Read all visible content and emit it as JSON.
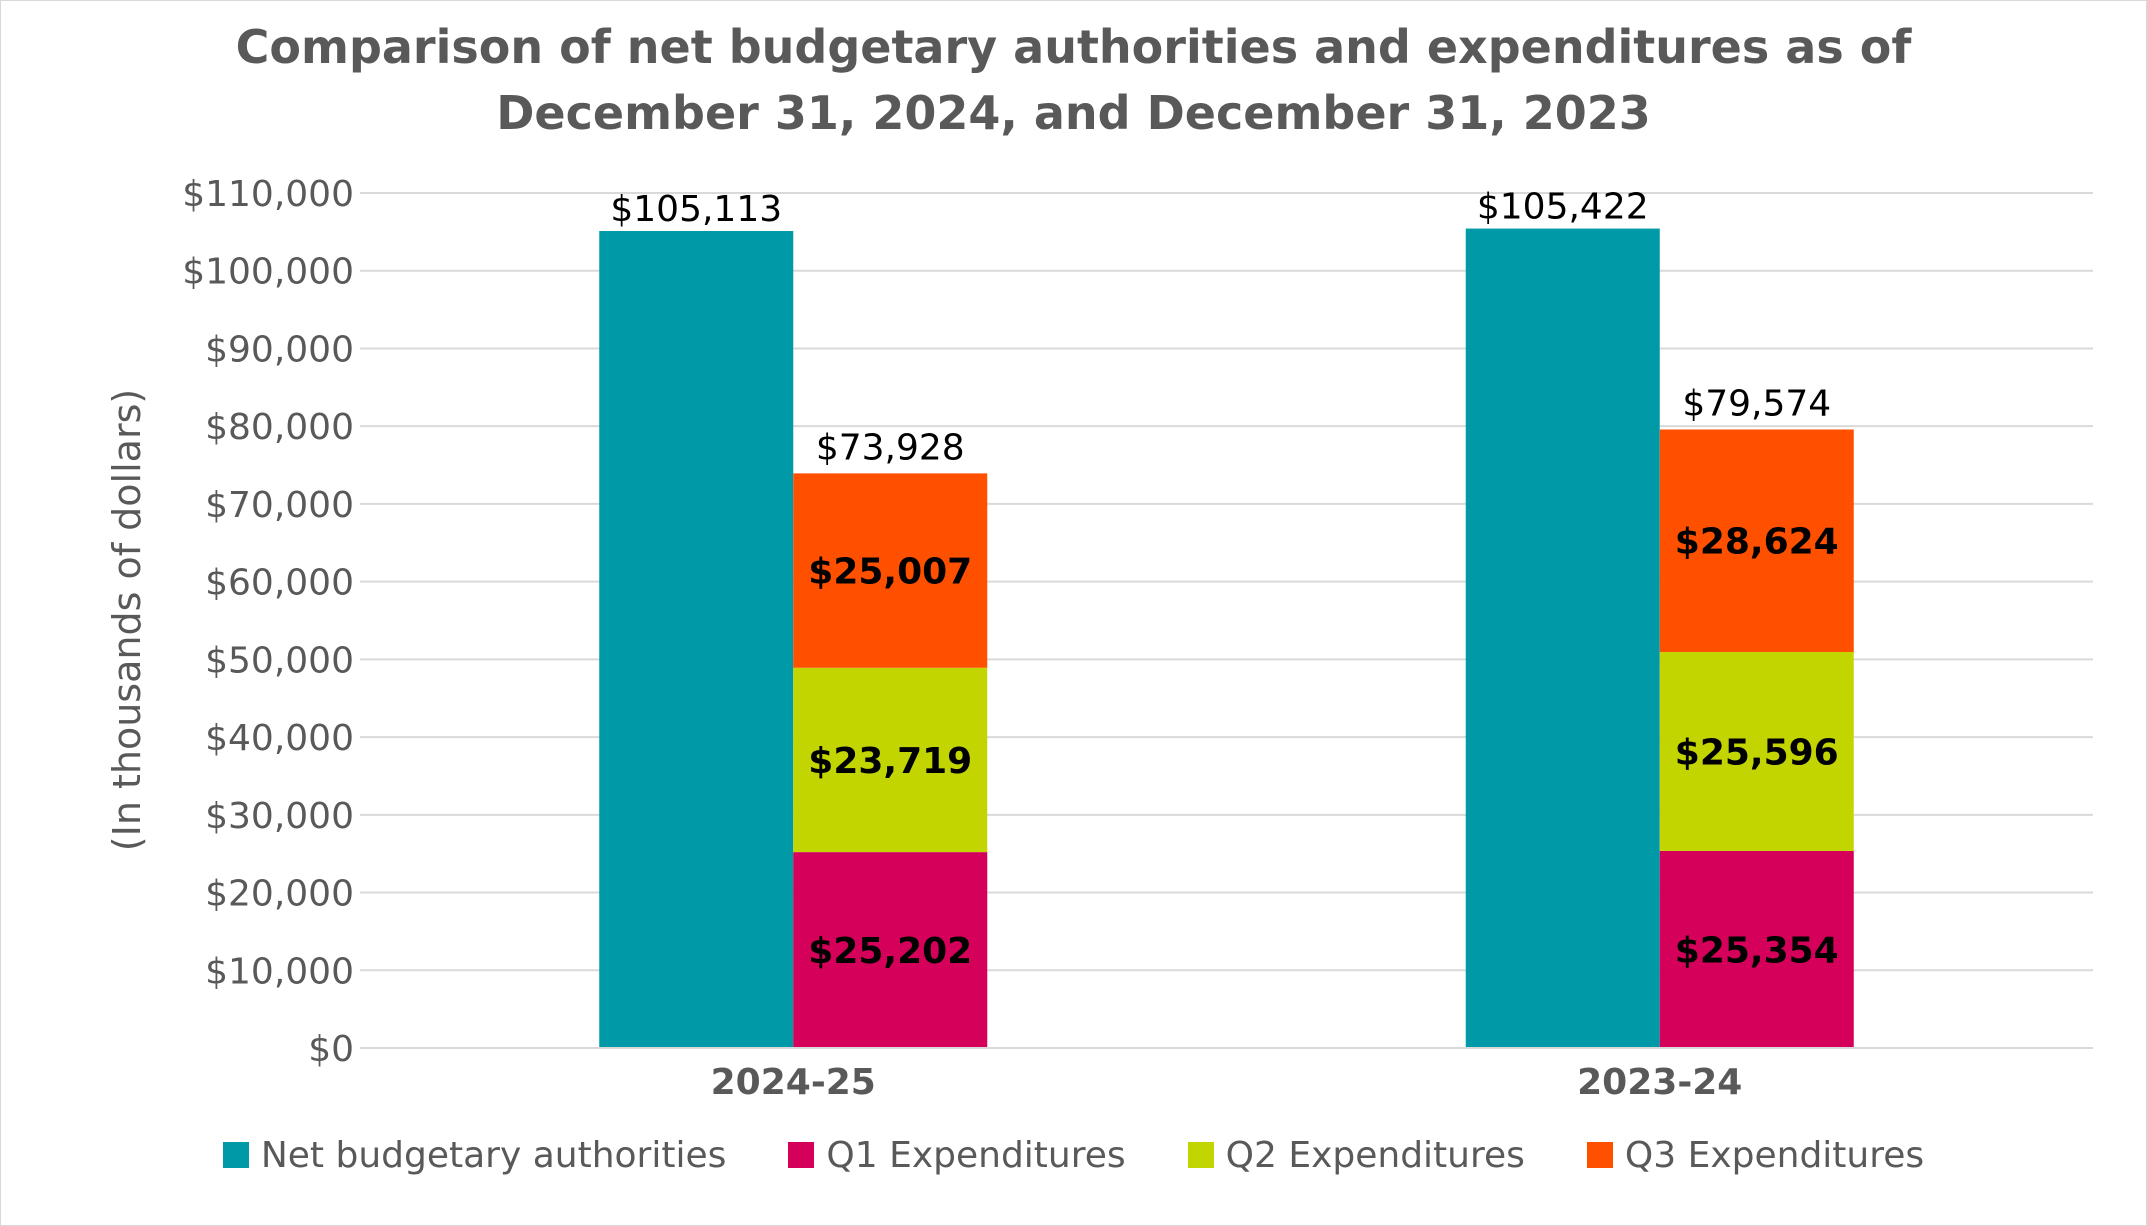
{
  "chart_data": {
    "type": "bar",
    "title": "Comparison of net budgetary authorities and expenditures as of December 31, 2024, and December 31, 2023",
    "title_lines": [
      "Comparison of net budgetary authorities and expenditures as of",
      "December 31, 2024, and December 31, 2023"
    ],
    "ylabel": "(In thousands of dollars)",
    "xlabel": "",
    "ylim": [
      0,
      110000
    ],
    "y_ticks": [
      0,
      10000,
      20000,
      30000,
      40000,
      50000,
      60000,
      70000,
      80000,
      90000,
      100000,
      110000
    ],
    "y_tick_labels": [
      "$0",
      "$10,000",
      "$20,000",
      "$30,000",
      "$40,000",
      "$50,000",
      "$60,000",
      "$70,000",
      "$80,000",
      "$90,000",
      "$100,000",
      "$110,000"
    ],
    "grid": true,
    "legend_position": "bottom",
    "categories": [
      "2024-25",
      "2023-24"
    ],
    "series": [
      {
        "name": "Net budgetary authorities",
        "color": "#0099a8",
        "stack": "authorities",
        "values": [
          105113,
          105422
        ],
        "labels": [
          "$105,113",
          "$105,422"
        ]
      },
      {
        "name": "Q1 Expenditures",
        "color": "#d4005a",
        "stack": "expenditures",
        "values": [
          25202,
          25354
        ],
        "labels": [
          "$25,202",
          "$25,354"
        ]
      },
      {
        "name": "Q2 Expenditures",
        "color": "#c2d500",
        "stack": "expenditures",
        "values": [
          23719,
          25596
        ],
        "labels": [
          "$23,719",
          "$25,596"
        ]
      },
      {
        "name": "Q3 Expenditures",
        "color": "#ff5000",
        "stack": "expenditures",
        "values": [
          25007,
          28624
        ],
        "labels": [
          "$25,007",
          "$28,624"
        ]
      }
    ],
    "expenditure_totals": [
      73928,
      79574
    ],
    "expenditure_total_labels": [
      "$73,928",
      "$79,574"
    ]
  }
}
